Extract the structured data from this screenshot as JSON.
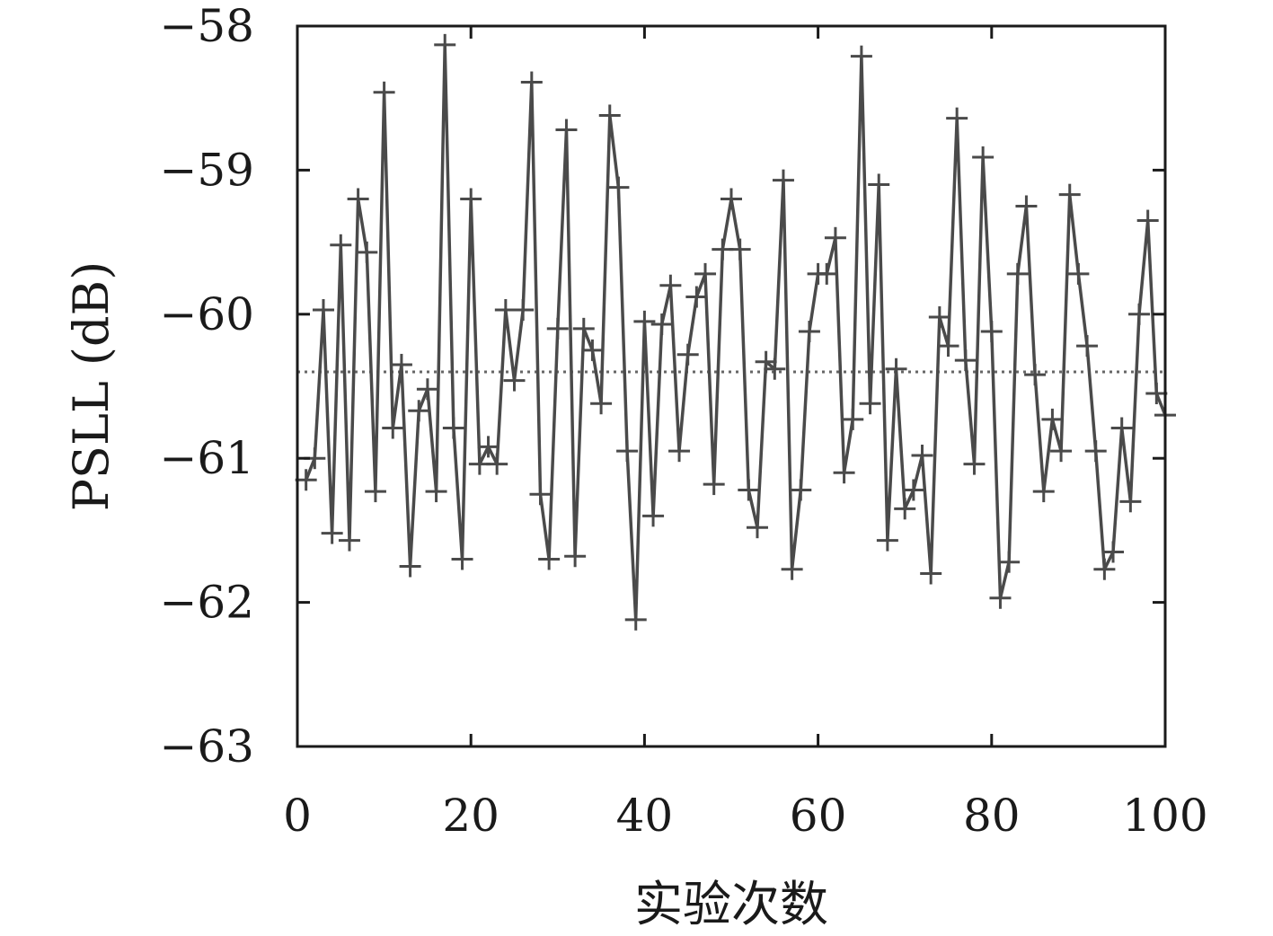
{
  "chart_data": {
    "type": "line",
    "xlabel": "实验次数",
    "ylabel": "PSLL (dB)",
    "xlim": [
      0,
      100
    ],
    "ylim": [
      -63,
      -58
    ],
    "x_ticks": [
      "0",
      "20",
      "40",
      "60",
      "80",
      "100"
    ],
    "y_ticks": [
      "−63",
      "−62",
      "−61",
      "−60",
      "−59",
      "−58"
    ],
    "grid": false,
    "legend": "none",
    "line_color": "#4a4a4a",
    "reference_line": {
      "value": -60.4,
      "style": "dotted",
      "color": "#666666"
    },
    "series": [
      {
        "marker": "plus",
        "x": [
          1,
          2,
          3,
          4,
          5,
          6,
          7,
          8,
          9,
          10,
          11,
          12,
          13,
          14,
          15,
          16,
          17,
          18,
          19,
          20,
          21,
          22,
          23,
          24,
          25,
          26,
          27,
          28,
          29,
          30,
          31,
          32,
          33,
          34,
          35,
          36,
          37,
          38,
          39,
          40,
          41,
          42,
          43,
          44,
          45,
          46,
          47,
          48,
          49,
          50,
          51,
          52,
          53,
          54,
          55,
          56,
          57,
          58,
          59,
          60,
          61,
          62,
          63,
          64,
          65,
          66,
          67,
          68,
          69,
          70,
          71,
          72,
          73,
          74,
          75,
          76,
          77,
          78,
          79,
          80,
          81,
          82,
          83,
          84,
          85,
          86,
          87,
          88,
          89,
          90,
          91,
          92,
          93,
          94,
          95,
          96,
          97,
          98,
          99,
          100
        ],
        "y": [
          -61.15,
          -61.0,
          -59.97,
          -61.52,
          -59.52,
          -61.57,
          -59.2,
          -59.57,
          -61.23,
          -58.46,
          -60.79,
          -60.35,
          -61.75,
          -60.67,
          -60.52,
          -61.23,
          -58.13,
          -60.79,
          -61.7,
          -59.2,
          -61.04,
          -60.92,
          -61.04,
          -59.97,
          -60.46,
          -59.97,
          -58.39,
          -61.25,
          -61.7,
          -60.1,
          -58.72,
          -61.68,
          -60.1,
          -60.25,
          -60.62,
          -58.62,
          -59.12,
          -60.95,
          -62.12,
          -60.05,
          -61.4,
          -60.07,
          -59.8,
          -60.95,
          -60.28,
          -59.88,
          -59.72,
          -61.18,
          -59.55,
          -59.2,
          -59.55,
          -61.22,
          -61.48,
          -60.33,
          -60.38,
          -59.07,
          -61.77,
          -61.22,
          -60.12,
          -59.72,
          -59.72,
          -59.47,
          -61.1,
          -60.73,
          -58.21,
          -60.62,
          -59.1,
          -61.57,
          -60.38,
          -61.35,
          -61.22,
          -60.98,
          -61.8,
          -60.02,
          -60.22,
          -58.64,
          -60.32,
          -61.04,
          -58.91,
          -60.12,
          -61.97,
          -61.72,
          -59.72,
          -59.25,
          -60.42,
          -61.23,
          -60.73,
          -60.95,
          -59.17,
          -59.72,
          -60.22,
          -60.95,
          -61.77,
          -61.65,
          -60.79,
          -61.3,
          -60.0,
          -59.35,
          -60.55,
          -60.7
        ]
      }
    ]
  }
}
